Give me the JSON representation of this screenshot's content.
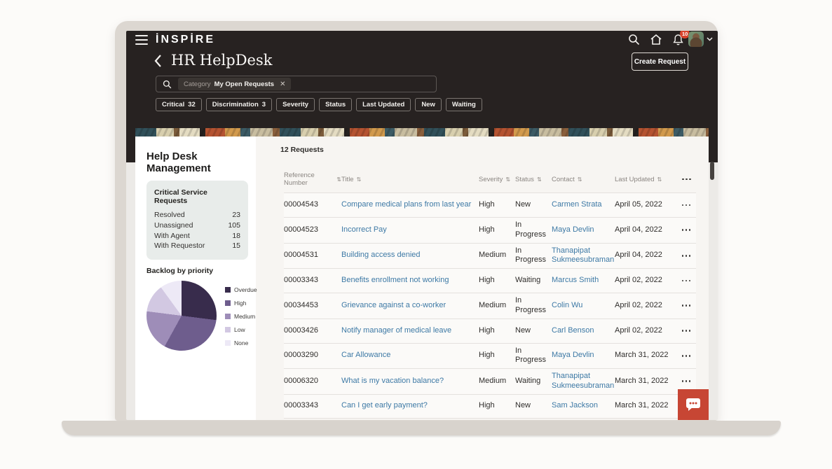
{
  "brand": "İNSPİRE",
  "topbar": {
    "notification_count": "10",
    "icons": {
      "menu": "hamburger-bars",
      "search": "magnifier",
      "home": "house-outline",
      "notifications": "bell-outline",
      "avatar": "user-photo",
      "expand": "chevron-down"
    }
  },
  "page": {
    "title": "HR HelpDesk",
    "create_button_label": "Create Request"
  },
  "search": {
    "chip_label": "Category",
    "chip_value": "My Open Requests"
  },
  "filters": [
    {
      "label": "Critical",
      "count": "32"
    },
    {
      "label": "Discrimination",
      "count": "3"
    },
    {
      "label": "Severity"
    },
    {
      "label": "Status"
    },
    {
      "label": "Last Updated"
    },
    {
      "label": "New"
    },
    {
      "label": "Waiting"
    }
  ],
  "sidebar": {
    "title": "Help Desk Management",
    "stats": {
      "title": "Critical Service Requests",
      "rows": [
        {
          "label": "Resolved",
          "value": "23"
        },
        {
          "label": "Unassigned",
          "value": "105"
        },
        {
          "label": "With Agent",
          "value": "18"
        },
        {
          "label": "With Requestor",
          "value": "15"
        }
      ]
    }
  },
  "chart_data": {
    "type": "pie",
    "title": "Backlog by priority",
    "labels": [
      "Overdue",
      "High",
      "Medium",
      "Low",
      "None"
    ],
    "values": [
      27,
      31,
      19,
      13,
      10
    ],
    "colors": [
      "#382c4c",
      "#6e5d8d",
      "#9e8db8",
      "#d2c8e2",
      "#ede9f6"
    ],
    "legend_position": "right"
  },
  "table": {
    "count_label": "12 Requests",
    "sort_glyph": "⇅",
    "columns": [
      "Reference Number",
      "Title",
      "Severity",
      "Status",
      "Contact",
      "Last Updated"
    ],
    "rows": [
      {
        "ref": "00004543",
        "title": "Compare medical plans from last year",
        "severity": "High",
        "status": "New",
        "contact": "Carmen Strata",
        "updated": "April 05, 2022"
      },
      {
        "ref": "00004523",
        "title": "Incorrect Pay",
        "severity": "High",
        "status": "In Progress",
        "contact": "Maya Devlin",
        "updated": "April 04, 2022"
      },
      {
        "ref": "00004531",
        "title": "Building access denied",
        "severity": "Medium",
        "status": "In Progress",
        "contact": "Thanapipat Sukmeesubraman",
        "updated": "April 04, 2022"
      },
      {
        "ref": "00003343",
        "title": "Benefits enrollment not working",
        "severity": "High",
        "status": "Waiting",
        "contact": "Marcus Smith",
        "updated": "April 02, 2022"
      },
      {
        "ref": "00034453",
        "title": "Grievance against a co-worker",
        "severity": "Medium",
        "status": "In Progress",
        "contact": "Colin Wu",
        "updated": "April 02, 2022"
      },
      {
        "ref": "00003426",
        "title": "Notify manager of medical leave",
        "severity": "High",
        "status": "New",
        "contact": "Carl Benson",
        "updated": "April 02, 2022"
      },
      {
        "ref": "00003290",
        "title": "Car Allowance",
        "severity": "High",
        "status": "In Progress",
        "contact": "Maya Devlin",
        "updated": "March 31, 2022"
      },
      {
        "ref": "00006320",
        "title": "What is my vacation balance?",
        "severity": "Medium",
        "status": "Waiting",
        "contact": "Thanapipat Sukmeesubraman",
        "updated": "March 31, 2022"
      },
      {
        "ref": "00003343",
        "title": "Can I get early payment?",
        "severity": "High",
        "status": "New",
        "contact": "Sam Jackson",
        "updated": "March 31, 2022"
      }
    ]
  },
  "colors": {
    "app_header_bg": "#272221",
    "accent_red": "#c74634",
    "badge_red": "#d8432c",
    "link_blue": "#3d79a5",
    "sheet_bg": "#f7f5f2",
    "stats_card_bg": "#e8ecea"
  }
}
